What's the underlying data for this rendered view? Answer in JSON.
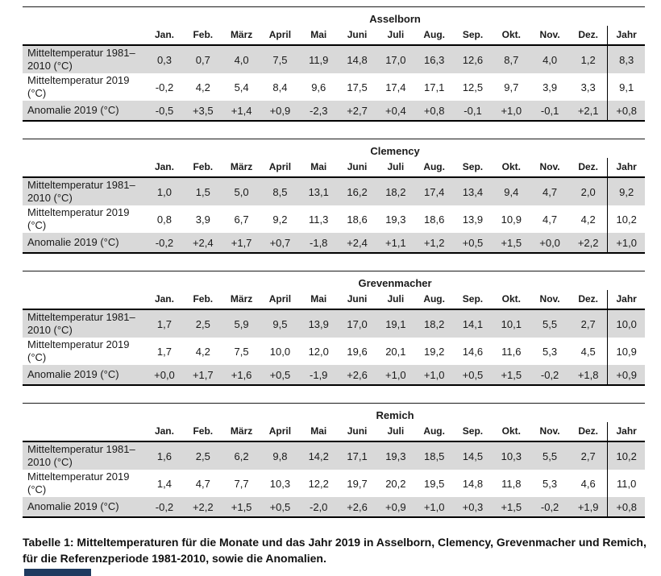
{
  "months": [
    "Jan.",
    "Feb.",
    "März",
    "April",
    "Mai",
    "Juni",
    "Juli",
    "Aug.",
    "Sep.",
    "Okt.",
    "Nov.",
    "Dez."
  ],
  "year_label": "Jahr",
  "row_labels": [
    "Mitteltemperatur 1981–2010 (°C)",
    "Mitteltemperatur 2019 (°C)",
    "Anomalie 2019 (°C)"
  ],
  "stations": [
    {
      "name": "Asselborn",
      "rows": [
        {
          "values": [
            "0,3",
            "0,7",
            "4,0",
            "7,5",
            "11,9",
            "14,8",
            "17,0",
            "16,3",
            "12,6",
            "8,7",
            "4,0",
            "1,2"
          ],
          "year": "8,3"
        },
        {
          "values": [
            "-0,2",
            "4,2",
            "5,4",
            "8,4",
            "9,6",
            "17,5",
            "17,4",
            "17,1",
            "12,5",
            "9,7",
            "3,9",
            "3,3"
          ],
          "year": "9,1"
        },
        {
          "values": [
            "-0,5",
            "+3,5",
            "+1,4",
            "+0,9",
            "-2,3",
            "+2,7",
            "+0,4",
            "+0,8",
            "-0,1",
            "+1,0",
            "-0,1",
            "+2,1"
          ],
          "year": "+0,8"
        }
      ]
    },
    {
      "name": "Clemency",
      "rows": [
        {
          "values": [
            "1,0",
            "1,5",
            "5,0",
            "8,5",
            "13,1",
            "16,2",
            "18,2",
            "17,4",
            "13,4",
            "9,4",
            "4,7",
            "2,0"
          ],
          "year": "9,2"
        },
        {
          "values": [
            "0,8",
            "3,9",
            "6,7",
            "9,2",
            "11,3",
            "18,6",
            "19,3",
            "18,6",
            "13,9",
            "10,9",
            "4,7",
            "4,2"
          ],
          "year": "10,2"
        },
        {
          "values": [
            "-0,2",
            "+2,4",
            "+1,7",
            "+0,7",
            "-1,8",
            "+2,4",
            "+1,1",
            "+1,2",
            "+0,5",
            "+1,5",
            "+0,0",
            "+2,2"
          ],
          "year": "+1,0"
        }
      ]
    },
    {
      "name": "Grevenmacher",
      "rows": [
        {
          "values": [
            "1,7",
            "2,5",
            "5,9",
            "9,5",
            "13,9",
            "17,0",
            "19,1",
            "18,2",
            "14,1",
            "10,1",
            "5,5",
            "2,7"
          ],
          "year": "10,0"
        },
        {
          "values": [
            "1,7",
            "4,2",
            "7,5",
            "10,0",
            "12,0",
            "19,6",
            "20,1",
            "19,2",
            "14,6",
            "11,6",
            "5,3",
            "4,5"
          ],
          "year": "10,9"
        },
        {
          "values": [
            "+0,0",
            "+1,7",
            "+1,6",
            "+0,5",
            "-1,9",
            "+2,6",
            "+1,0",
            "+1,0",
            "+0,5",
            "+1,5",
            "-0,2",
            "+1,8"
          ],
          "year": "+0,9"
        }
      ]
    },
    {
      "name": "Remich",
      "rows": [
        {
          "values": [
            "1,6",
            "2,5",
            "6,2",
            "9,8",
            "14,2",
            "17,1",
            "19,3",
            "18,5",
            "14,5",
            "10,3",
            "5,5",
            "2,7"
          ],
          "year": "10,2"
        },
        {
          "values": [
            "1,4",
            "4,7",
            "7,7",
            "10,3",
            "12,2",
            "19,7",
            "20,2",
            "19,5",
            "14,8",
            "11,8",
            "5,3",
            "4,6"
          ],
          "year": "11,0"
        },
        {
          "values": [
            "-0,2",
            "+2,2",
            "+1,5",
            "+0,5",
            "-2,0",
            "+2,6",
            "+0,9",
            "+1,0",
            "+0,3",
            "+1,5",
            "-0,2",
            "+1,9"
          ],
          "year": "+0,8"
        }
      ]
    }
  ],
  "caption": "Tabelle 1: Mitteltemperaturen für die Monate und das Jahr 2019 in Asselborn, Clemency, Grevenmacher und Remich, für die Referenzperiode 1981-2010, sowie die Anomalien.",
  "colors": {
    "row_shade": "#d9d9d9",
    "rule": "#000000",
    "accent_bar": "#1e3a5f"
  }
}
